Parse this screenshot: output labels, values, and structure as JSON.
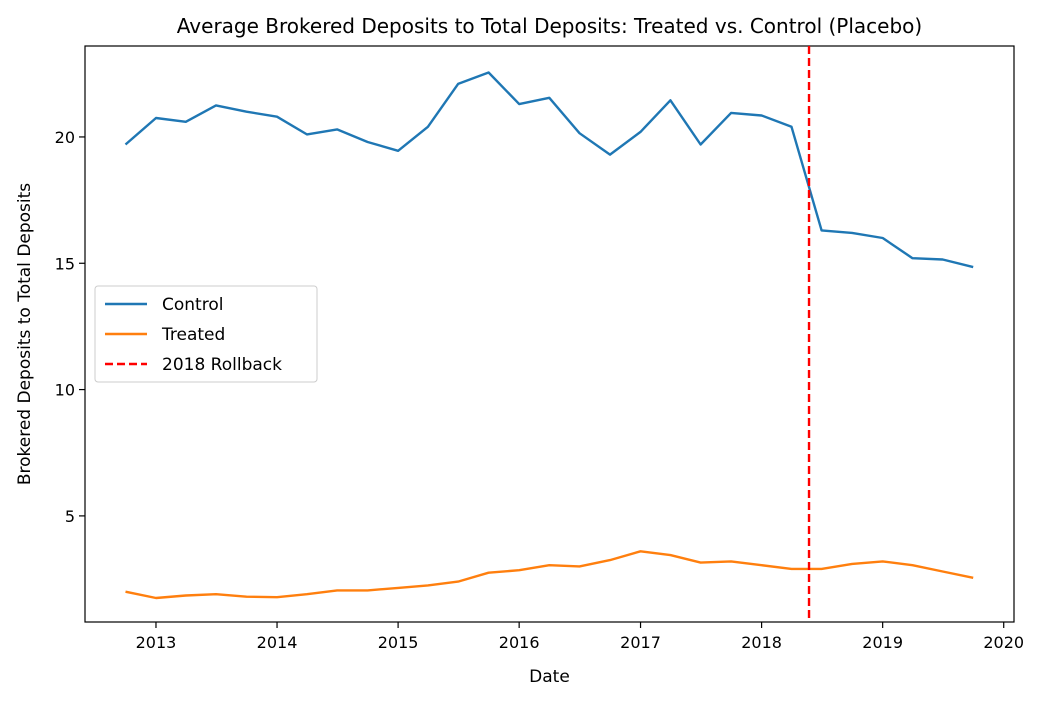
{
  "chart_data": {
    "type": "line",
    "title": "Average Brokered Deposits to Total Deposits: Treated vs. Control (Placebo)",
    "xlabel": "Date",
    "ylabel": "Brokered Deposits to Total Deposits",
    "xlim": [
      "2012-06-01",
      "2020-02-01"
    ],
    "ylim": [
      0.8,
      23.6
    ],
    "x_ticks": [
      "2013",
      "2014",
      "2015",
      "2016",
      "2017",
      "2018",
      "2019",
      "2020"
    ],
    "y_ticks": [
      "5",
      "10",
      "15",
      "20"
    ],
    "x": [
      "2012-10-01",
      "2013-01-01",
      "2013-04-01",
      "2013-07-01",
      "2013-10-01",
      "2014-01-01",
      "2014-04-01",
      "2014-07-01",
      "2014-10-01",
      "2015-01-01",
      "2015-04-01",
      "2015-07-01",
      "2015-10-01",
      "2016-01-01",
      "2016-04-01",
      "2016-07-01",
      "2016-10-01",
      "2017-01-01",
      "2017-04-01",
      "2017-07-01",
      "2017-10-01",
      "2018-01-01",
      "2018-04-01",
      "2018-07-01",
      "2018-10-01",
      "2019-01-01",
      "2019-04-01",
      "2019-07-01",
      "2019-10-01"
    ],
    "series": [
      {
        "name": "Control",
        "color": "#1f77b4",
        "values": [
          19.7,
          20.75,
          20.6,
          21.25,
          21.0,
          20.8,
          20.1,
          20.3,
          19.8,
          19.45,
          20.4,
          22.1,
          22.55,
          21.3,
          21.55,
          20.15,
          19.3,
          20.2,
          21.45,
          19.7,
          20.95,
          20.85,
          20.4,
          16.3,
          16.2,
          16.0,
          15.2,
          15.15,
          14.85
        ]
      },
      {
        "name": "Treated",
        "color": "#ff7f0e",
        "values": [
          2.0,
          1.75,
          1.85,
          1.9,
          1.8,
          1.78,
          1.9,
          2.05,
          2.05,
          2.15,
          2.25,
          2.4,
          2.75,
          2.85,
          3.05,
          3.0,
          3.25,
          3.6,
          3.45,
          3.15,
          3.2,
          3.05,
          2.9,
          2.9,
          3.1,
          3.2,
          3.05,
          2.8,
          2.55
        ]
      }
    ],
    "vline": {
      "name": "2018 Rollback",
      "x": "2018-05-24",
      "color": "#ff0000",
      "style": "dashed"
    },
    "legend": {
      "placement": "center-left",
      "entries": [
        {
          "label": "Control",
          "color": "#1f77b4",
          "style": "solid"
        },
        {
          "label": "Treated",
          "color": "#ff7f0e",
          "style": "solid"
        },
        {
          "label": "2018 Rollback",
          "color": "#ff0000",
          "style": "dashed"
        }
      ]
    },
    "grid": false
  }
}
